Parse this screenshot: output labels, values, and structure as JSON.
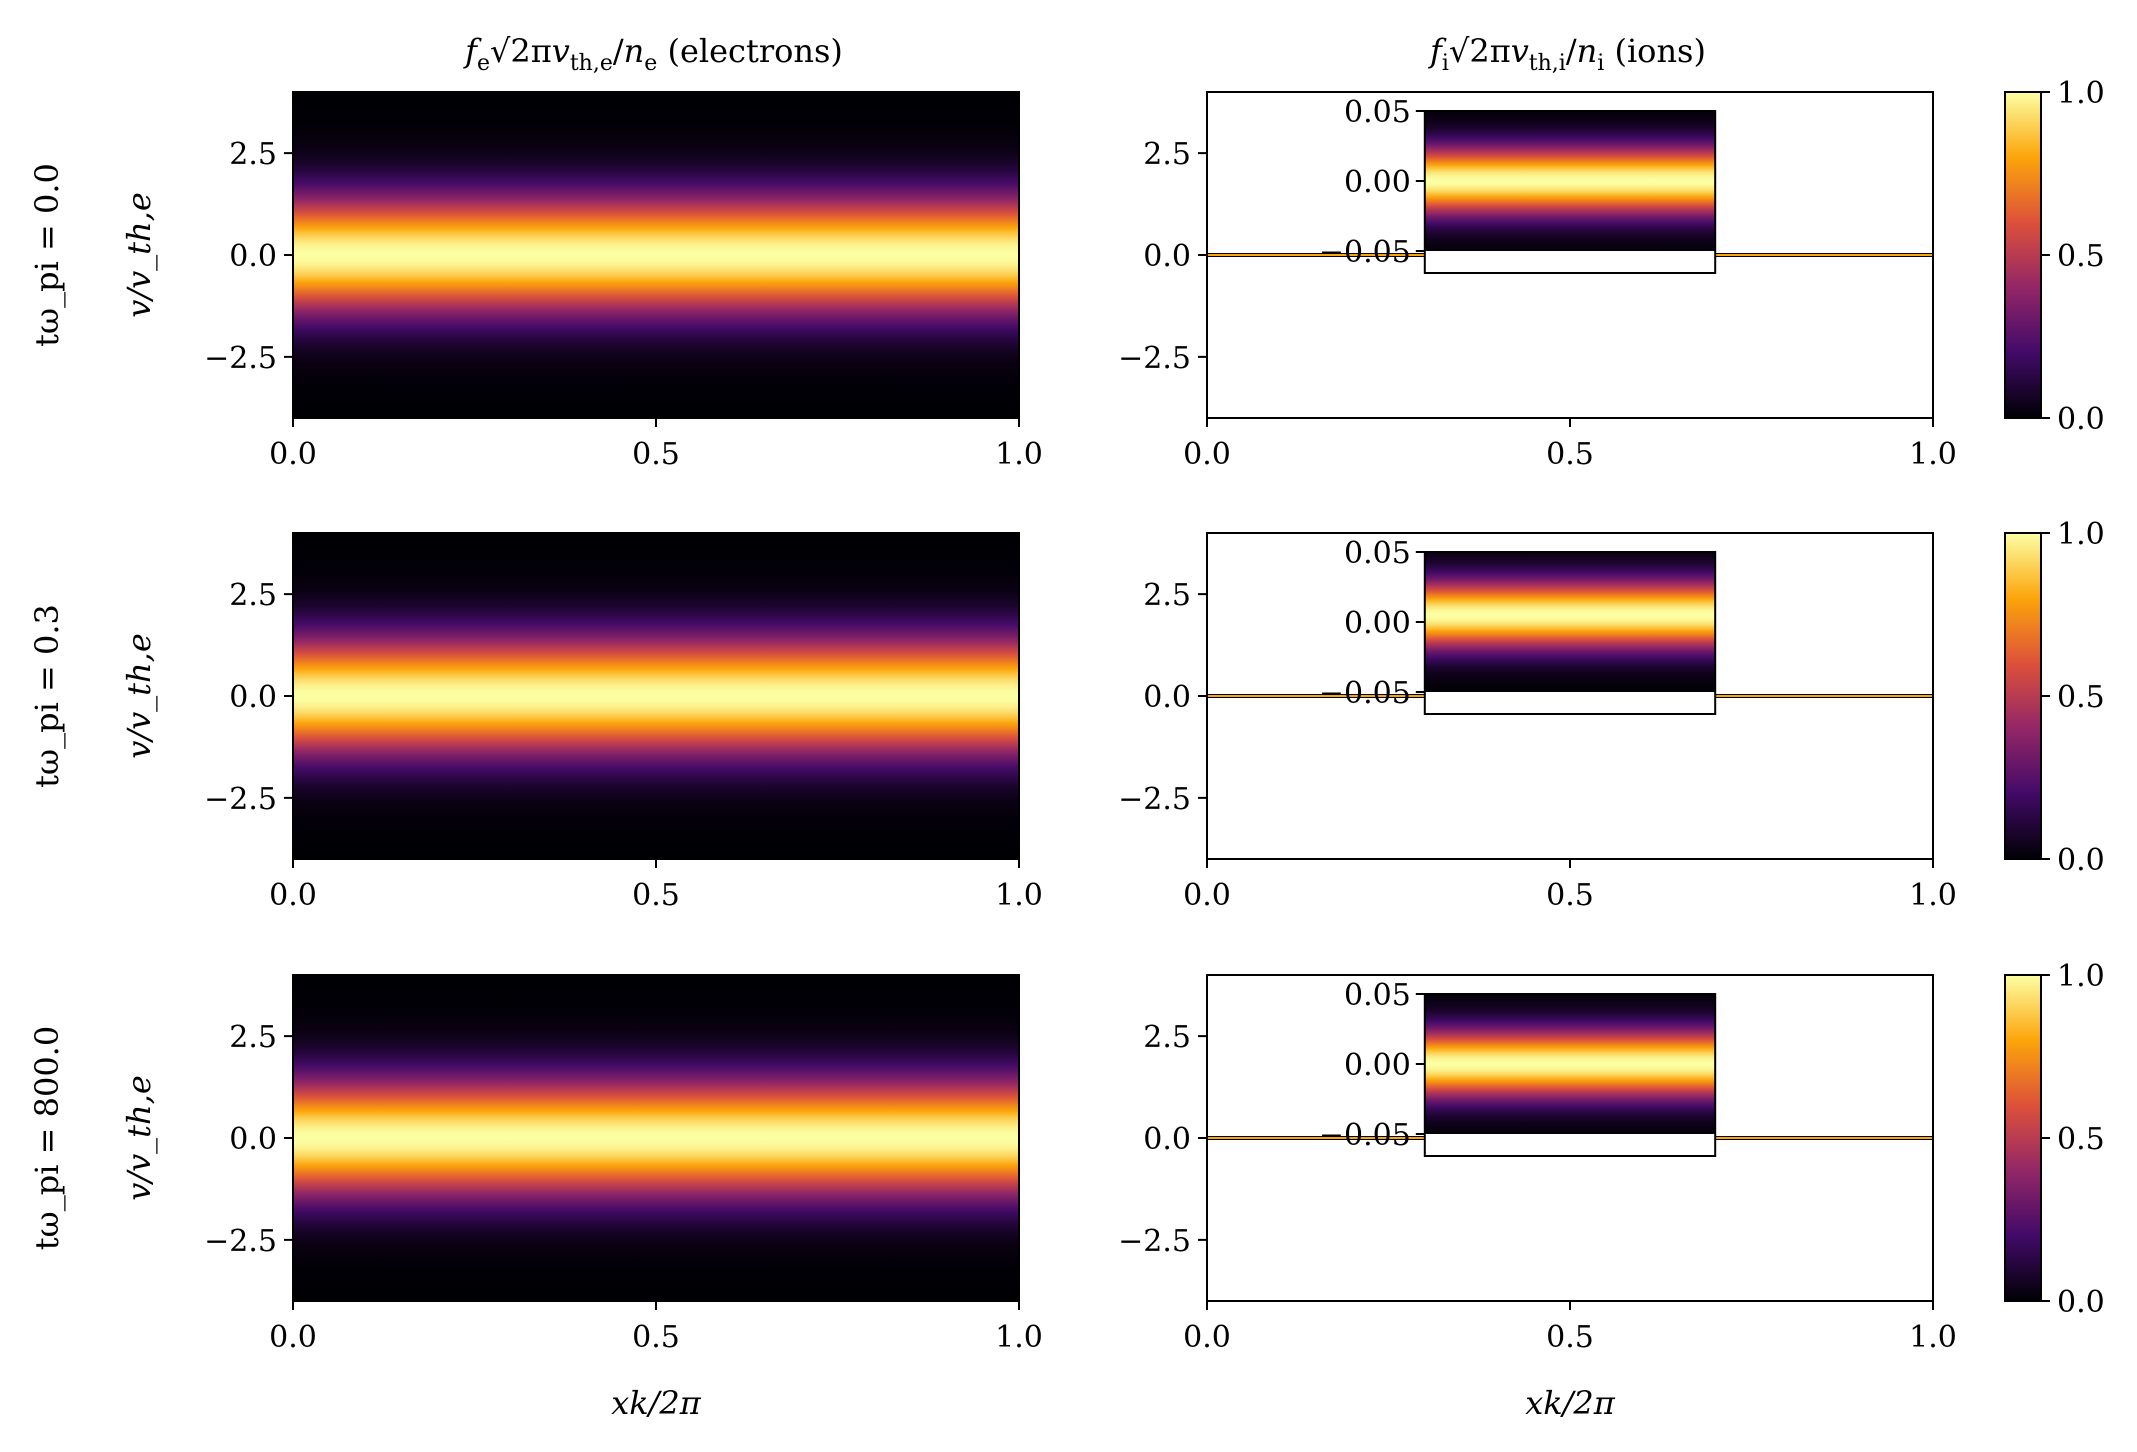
{
  "figure": {
    "titles": {
      "electrons": "f_e√2πv_th,e/n_e (electrons)",
      "ions": "f_i√2πv_th,i/n_i (ions)"
    },
    "row_labels": [
      "tω_pi = 0.0",
      "tω_pi = 0.3",
      "tω_pi = 800.0"
    ],
    "ylabel": "v/v_th,e",
    "xlabel": "xk/2π",
    "colormap": "inferno",
    "colors": {
      "c0": "#000004",
      "c1": "#420a68",
      "c2": "#932667",
      "c3": "#dd513a",
      "c4": "#fca50a",
      "c5": "#fcffa4"
    }
  },
  "chart_data": [
    {
      "type": "heatmap",
      "panel": "electrons",
      "row": 0,
      "time_label": "tω_pi = 0.0",
      "x_range": [
        0.0,
        1.0
      ],
      "y_range": [
        -4.0,
        4.0
      ],
      "xticks": [
        "0.0",
        "0.5",
        "1.0"
      ],
      "yticks": [
        "2.5",
        "0.0",
        "−2.5"
      ],
      "distribution": "Maxwellian in v, uniform in x",
      "center": 0.0,
      "width": 1.0,
      "peak": 1.0
    },
    {
      "type": "heatmap",
      "panel": "ions",
      "row": 0,
      "time_label": "tω_pi = 0.0",
      "x_range": [
        0.0,
        1.0
      ],
      "y_range": [
        -4.0,
        4.0
      ],
      "xticks": [
        "0.0",
        "0.5",
        "1.0"
      ],
      "yticks": [
        "2.5",
        "0.0",
        "−2.5"
      ],
      "inset": {
        "x_range": [
          0.3,
          0.7
        ],
        "y_range": [
          -0.05,
          0.05
        ],
        "yticks": [
          "0.05",
          "0.00",
          "−0.05"
        ],
        "center": 0.0,
        "width": 0.017
      },
      "peak": 1.0
    },
    {
      "type": "heatmap",
      "panel": "electrons",
      "row": 1,
      "time_label": "tω_pi = 0.3",
      "x_range": [
        0.0,
        1.0
      ],
      "y_range": [
        -4.0,
        4.0
      ],
      "xticks": [
        "0.0",
        "0.5",
        "1.0"
      ],
      "yticks": [
        "2.5",
        "0.0",
        "−2.5"
      ],
      "center": 0.0,
      "width": 1.0,
      "peak": 1.0
    },
    {
      "type": "heatmap",
      "panel": "ions",
      "row": 1,
      "time_label": "tω_pi = 0.3",
      "x_range": [
        0.0,
        1.0
      ],
      "y_range": [
        -4.0,
        4.0
      ],
      "xticks": [
        "0.0",
        "0.5",
        "1.0"
      ],
      "yticks": [
        "2.5",
        "0.0",
        "−2.5"
      ],
      "inset": {
        "x_range": [
          0.3,
          0.7
        ],
        "y_range": [
          -0.05,
          0.05
        ],
        "yticks": [
          "0.05",
          "0.00",
          "−0.05"
        ],
        "center": 0.005,
        "width": 0.017
      },
      "peak": 1.0
    },
    {
      "type": "heatmap",
      "panel": "electrons",
      "row": 2,
      "time_label": "tω_pi = 800.0",
      "x_range": [
        0.0,
        1.0
      ],
      "y_range": [
        -4.0,
        4.0
      ],
      "xticks": [
        "0.0",
        "0.5",
        "1.0"
      ],
      "yticks": [
        "2.5",
        "0.0",
        "−2.5"
      ],
      "center": 0.0,
      "width": 1.0,
      "peak": 1.0
    },
    {
      "type": "heatmap",
      "panel": "ions",
      "row": 2,
      "time_label": "tω_pi = 800.0",
      "x_range": [
        0.0,
        1.0
      ],
      "y_range": [
        -4.0,
        4.0
      ],
      "xticks": [
        "0.0",
        "0.5",
        "1.0"
      ],
      "yticks": [
        "2.5",
        "0.0",
        "−2.5"
      ],
      "inset": {
        "x_range": [
          0.3,
          0.7
        ],
        "y_range": [
          -0.05,
          0.05
        ],
        "yticks": [
          "0.05",
          "0.00",
          "−0.05"
        ],
        "center": 0.0,
        "width": 0.017
      },
      "peak": 1.0
    }
  ],
  "colorbar": {
    "range": [
      0.0,
      1.0
    ],
    "ticks": [
      "1.0",
      "0.5",
      "0.0"
    ]
  }
}
